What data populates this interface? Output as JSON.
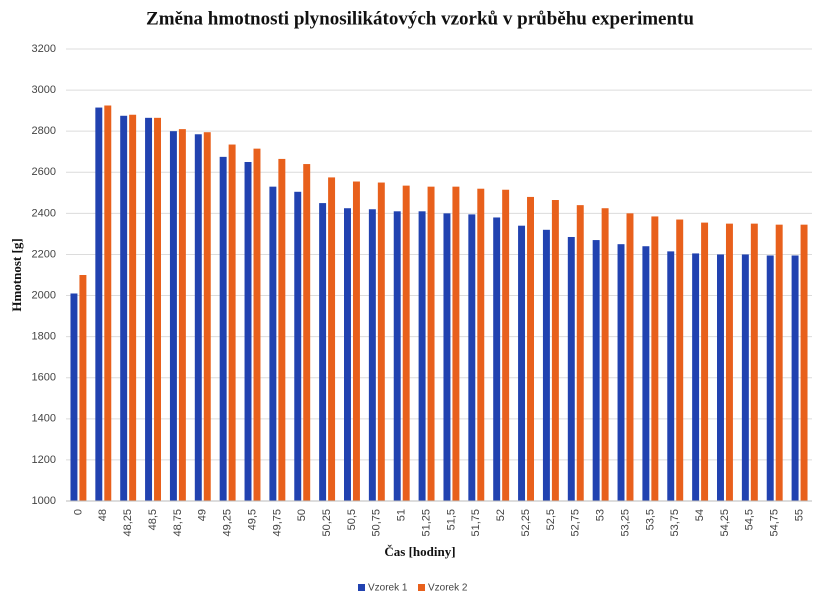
{
  "chart_data": {
    "type": "bar",
    "title": "Změna hmotnosti plynosilikátových vzorků v průběhu experimentu",
    "x_label": "Čas [hodiny]",
    "y_label": "Hmotnost [g]",
    "categories": [
      "0",
      "48",
      "48,25",
      "48,5",
      "48,75",
      "49",
      "49,25",
      "49,5",
      "49,75",
      "50",
      "50,25",
      "50,5",
      "50,75",
      "51",
      "51,25",
      "51,5",
      "51,75",
      "52",
      "52,25",
      "52,5",
      "52,75",
      "53",
      "53,25",
      "53,5",
      "53,75",
      "54",
      "54,25",
      "54,5",
      "54,75",
      "55"
    ],
    "series": [
      {
        "name": "Vzorek 1",
        "color": "#2142b0",
        "values": [
          2010,
          2915,
          2875,
          2865,
          2800,
          2785,
          2675,
          2650,
          2530,
          2505,
          2450,
          2425,
          2420,
          2410,
          2410,
          2400,
          2395,
          2380,
          2340,
          2320,
          2285,
          2270,
          2250,
          2240,
          2215,
          2205,
          2200,
          2200,
          2195,
          2195
        ]
      },
      {
        "name": "Vzorek 2",
        "color": "#e8601c",
        "values": [
          2100,
          2925,
          2880,
          2865,
          2810,
          2795,
          2735,
          2715,
          2665,
          2640,
          2575,
          2555,
          2550,
          2535,
          2530,
          2530,
          2520,
          2515,
          2480,
          2465,
          2440,
          2425,
          2400,
          2385,
          2370,
          2355,
          2350,
          2350,
          2345,
          2345
        ]
      }
    ],
    "ylim": [
      1000,
      3200
    ],
    "yticks": [
      1000,
      1200,
      1400,
      1600,
      1800,
      2000,
      2200,
      2400,
      2600,
      2800,
      3000,
      3200
    ],
    "grid": true,
    "legend": "bottom"
  }
}
